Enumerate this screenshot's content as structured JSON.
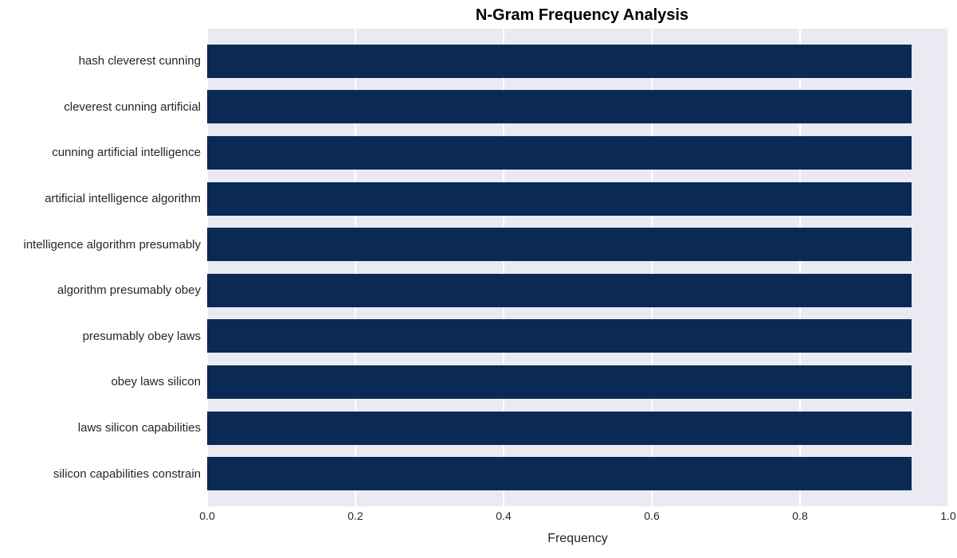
{
  "chart": {
    "type": "horizontal-bar",
    "title": "N-Gram Frequency Analysis",
    "title_fontsize": 20,
    "title_fontweight": "700",
    "xlabel": "Frequency",
    "xlabel_fontsize": 16,
    "plot_background": "#eaeaf2",
    "page_background": "#ffffff",
    "grid_color": "#ffffff",
    "tick_fontcolor": "#262626",
    "tick_fontsize_y": 15,
    "tick_fontsize_x": 14,
    "xlim": [
      0.0,
      1.0
    ],
    "xticks": [
      0.0,
      0.2,
      0.4,
      0.6,
      0.8,
      1.0
    ],
    "xtick_labels": [
      "0.0",
      "0.2",
      "0.4",
      "0.6",
      "0.8",
      "1.0"
    ],
    "max_value": 1.0,
    "bar_color": "#0a2a55",
    "bar_height_ratio": 0.74,
    "categories": [
      "hash cleverest cunning",
      "cleverest cunning artificial",
      "cunning artificial intelligence",
      "artificial intelligence algorithm",
      "intelligence algorithm presumably",
      "algorithm presumably obey",
      "presumably obey laws",
      "obey laws silicon",
      "laws silicon capabilities",
      "silicon capabilities constrain"
    ],
    "values": [
      0.95,
      0.95,
      0.95,
      0.95,
      0.95,
      0.95,
      0.95,
      0.95,
      0.95,
      0.95
    ]
  }
}
